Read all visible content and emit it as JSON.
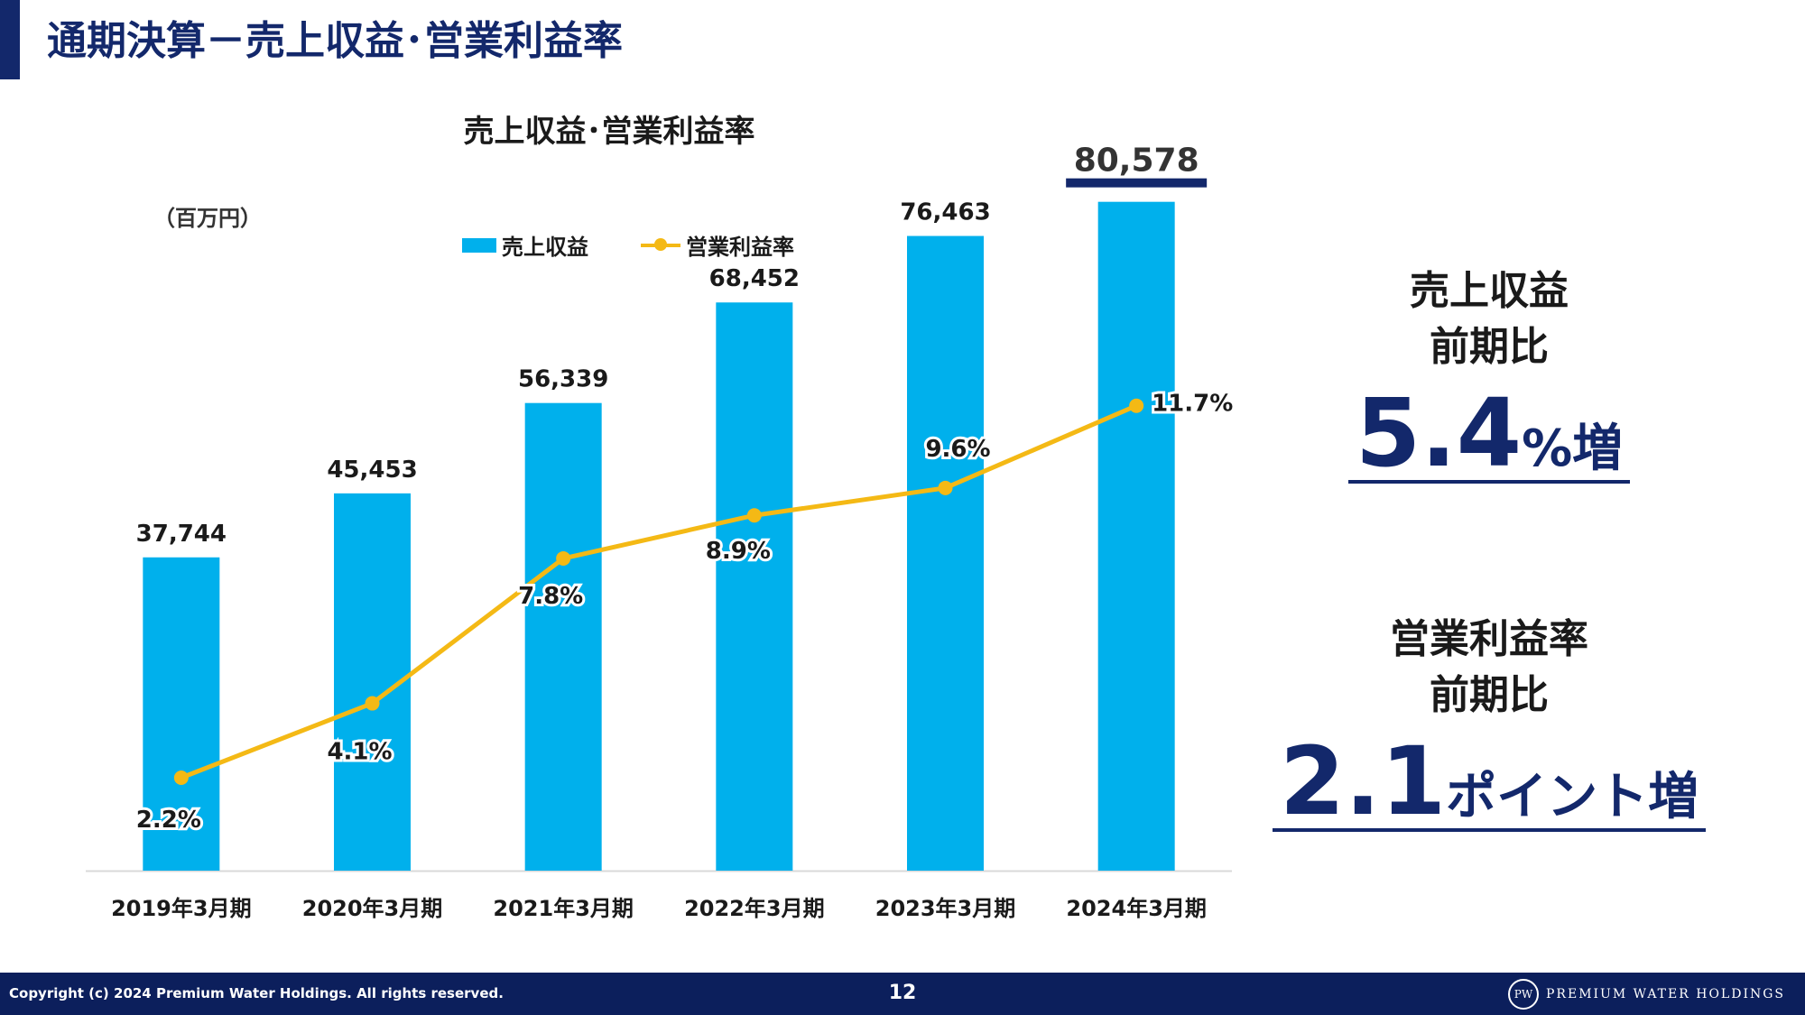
{
  "page_title": "通期決算－売上収益･営業利益率",
  "colors": {
    "navy": "#13286b",
    "bar": "#00b0ec",
    "line": "#f4b915",
    "footer": "#0c1f5c"
  },
  "chart_data": {
    "type": "bar",
    "title": "売上収益･営業利益率",
    "unit_label": "（百万円）",
    "categories": [
      "2019年3月期",
      "2020年3月期",
      "2021年3月期",
      "2022年3月期",
      "2023年3月期",
      "2024年3月期"
    ],
    "series": [
      {
        "name": "売上収益",
        "type": "bar",
        "values": [
          37744,
          45453,
          56339,
          68452,
          76463,
          80578
        ],
        "labels": [
          "37,744",
          "45,453",
          "56,339",
          "68,452",
          "76,463",
          "80,578"
        ]
      },
      {
        "name": "営業利益率",
        "type": "line",
        "values": [
          2.2,
          4.1,
          7.8,
          8.9,
          9.6,
          11.7
        ],
        "labels": [
          "2.2%",
          "4.1%",
          "7.8%",
          "8.9%",
          "9.6%",
          "11.7%"
        ]
      }
    ],
    "highlight_category_index": 5,
    "legend_position": "top",
    "grid": false
  },
  "kpis": [
    {
      "label_line1": "売上収益",
      "label_line2": "前期比",
      "value": "5.4",
      "suffix": "%増"
    },
    {
      "label_line1": "営業利益率",
      "label_line2": "前期比",
      "value": "2.1",
      "suffix": "ポイント増"
    }
  ],
  "footer": {
    "copyright": "Copyright (c) 2024 Premium Water Holdings. All rights reserved.",
    "page_number": "12",
    "logo_mark": "PW",
    "logo_text": "PREMIUM WATER HOLDINGS"
  }
}
